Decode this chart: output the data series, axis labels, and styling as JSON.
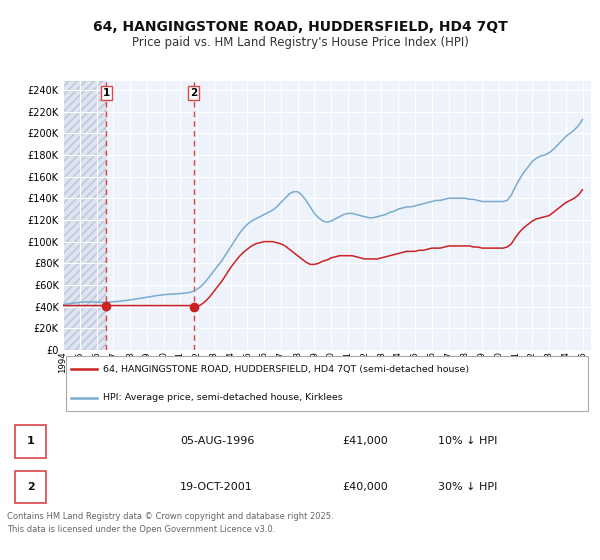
{
  "title": "64, HANGINGSTONE ROAD, HUDDERSFIELD, HD4 7QT",
  "subtitle": "Price paid vs. HM Land Registry's House Price Index (HPI)",
  "title_fontsize": 10,
  "subtitle_fontsize": 8.5,
  "background_color": "#ffffff",
  "plot_bg_color": "#eef2fb",
  "hatch_bg_color": "#dde4f0",
  "grid_color": "#ffffff",
  "ylabel_vals": [
    0,
    20000,
    40000,
    60000,
    80000,
    100000,
    120000,
    140000,
    160000,
    180000,
    200000,
    220000,
    240000
  ],
  "ylim": [
    0,
    248000
  ],
  "xlim_start": 1994.0,
  "xlim_end": 2025.5,
  "sale_dates": [
    1996.59,
    2001.8
  ],
  "sale_prices": [
    41000,
    40000
  ],
  "sale_labels": [
    "1",
    "2"
  ],
  "vline_color": "#dd4444",
  "sale_marker_color": "#cc2222",
  "red_line_color": "#cc2222",
  "blue_line_color": "#7aabcf",
  "legend_label_red": "64, HANGINGSTONE ROAD, HUDDERSFIELD, HD4 7QT (semi-detached house)",
  "legend_label_blue": "HPI: Average price, semi-detached house, Kirklees",
  "table_rows": [
    {
      "num": "1",
      "date": "05-AUG-1996",
      "price": "£41,000",
      "hpi": "10% ↓ HPI"
    },
    {
      "num": "2",
      "date": "19-OCT-2001",
      "price": "£40,000",
      "hpi": "30% ↓ HPI"
    }
  ],
  "footer": "Contains HM Land Registry data © Crown copyright and database right 2025.\nThis data is licensed under the Open Government Licence v3.0.",
  "hpi_x": [
    1994.0,
    1994.25,
    1994.5,
    1994.75,
    1995.0,
    1995.25,
    1995.5,
    1995.75,
    1996.0,
    1996.25,
    1996.5,
    1996.75,
    1997.0,
    1997.25,
    1997.5,
    1997.75,
    1998.0,
    1998.25,
    1998.5,
    1998.75,
    1999.0,
    1999.25,
    1999.5,
    1999.75,
    2000.0,
    2000.25,
    2000.5,
    2000.75,
    2001.0,
    2001.25,
    2001.5,
    2001.75,
    2002.0,
    2002.25,
    2002.5,
    2002.75,
    2003.0,
    2003.25,
    2003.5,
    2003.75,
    2004.0,
    2004.25,
    2004.5,
    2004.75,
    2005.0,
    2005.25,
    2005.5,
    2005.75,
    2006.0,
    2006.25,
    2006.5,
    2006.75,
    2007.0,
    2007.25,
    2007.5,
    2007.75,
    2008.0,
    2008.25,
    2008.5,
    2008.75,
    2009.0,
    2009.25,
    2009.5,
    2009.75,
    2010.0,
    2010.25,
    2010.5,
    2010.75,
    2011.0,
    2011.25,
    2011.5,
    2011.75,
    2012.0,
    2012.25,
    2012.5,
    2012.75,
    2013.0,
    2013.25,
    2013.5,
    2013.75,
    2014.0,
    2014.25,
    2014.5,
    2014.75,
    2015.0,
    2015.25,
    2015.5,
    2015.75,
    2016.0,
    2016.25,
    2016.5,
    2016.75,
    2017.0,
    2017.25,
    2017.5,
    2017.75,
    2018.0,
    2018.25,
    2018.5,
    2018.75,
    2019.0,
    2019.25,
    2019.5,
    2019.75,
    2020.0,
    2020.25,
    2020.5,
    2020.75,
    2021.0,
    2021.25,
    2021.5,
    2021.75,
    2022.0,
    2022.25,
    2022.5,
    2022.75,
    2023.0,
    2023.25,
    2023.5,
    2023.75,
    2024.0,
    2024.25,
    2024.5,
    2024.75,
    2025.0
  ],
  "hpi_y": [
    42000,
    42500,
    43000,
    43500,
    44000,
    44200,
    44500,
    44300,
    44200,
    44000,
    44000,
    44200,
    44500,
    44800,
    45200,
    45700,
    46200,
    46800,
    47400,
    48000,
    48700,
    49300,
    50000,
    50500,
    51000,
    51300,
    51600,
    51800,
    52000,
    52500,
    53000,
    54000,
    56000,
    59000,
    63000,
    68000,
    73000,
    78000,
    83000,
    89000,
    95000,
    101000,
    107000,
    112000,
    116000,
    119000,
    121000,
    123000,
    125000,
    127000,
    129000,
    132000,
    136000,
    140000,
    144000,
    146000,
    146000,
    143000,
    138000,
    132000,
    126000,
    122000,
    119000,
    118000,
    119000,
    121000,
    123000,
    125000,
    126000,
    126000,
    125000,
    124000,
    123000,
    122000,
    122000,
    123000,
    124000,
    125000,
    127000,
    128000,
    130000,
    131000,
    132000,
    132000,
    133000,
    134000,
    135000,
    136000,
    137000,
    138000,
    138000,
    139000,
    140000,
    140000,
    140000,
    140000,
    140000,
    139000,
    139000,
    138000,
    137000,
    137000,
    137000,
    137000,
    137000,
    137000,
    138000,
    143000,
    151000,
    158000,
    164000,
    169000,
    174000,
    177000,
    179000,
    180000,
    182000,
    185000,
    189000,
    193000,
    197000,
    200000,
    203000,
    207000,
    213000
  ],
  "price_x": [
    1994.0,
    1994.25,
    1994.5,
    1994.75,
    1995.0,
    1995.25,
    1995.5,
    1995.75,
    1996.0,
    1996.25,
    1996.5,
    1996.75,
    1997.0,
    1997.25,
    1997.5,
    1997.75,
    1998.0,
    1998.25,
    1998.5,
    1998.75,
    1999.0,
    1999.25,
    1999.5,
    1999.75,
    2000.0,
    2000.25,
    2000.5,
    2000.75,
    2001.0,
    2001.25,
    2001.5,
    2001.75,
    2002.0,
    2002.25,
    2002.5,
    2002.75,
    2003.0,
    2003.25,
    2003.5,
    2003.75,
    2004.0,
    2004.25,
    2004.5,
    2004.75,
    2005.0,
    2005.25,
    2005.5,
    2005.75,
    2006.0,
    2006.25,
    2006.5,
    2006.75,
    2007.0,
    2007.25,
    2007.5,
    2007.75,
    2008.0,
    2008.25,
    2008.5,
    2008.75,
    2009.0,
    2009.25,
    2009.5,
    2009.75,
    2010.0,
    2010.25,
    2010.5,
    2010.75,
    2011.0,
    2011.25,
    2011.5,
    2011.75,
    2012.0,
    2012.25,
    2012.5,
    2012.75,
    2013.0,
    2013.25,
    2013.5,
    2013.75,
    2014.0,
    2014.25,
    2014.5,
    2014.75,
    2015.0,
    2015.25,
    2015.5,
    2015.75,
    2016.0,
    2016.25,
    2016.5,
    2016.75,
    2017.0,
    2017.25,
    2017.5,
    2017.75,
    2018.0,
    2018.25,
    2018.5,
    2018.75,
    2019.0,
    2019.25,
    2019.5,
    2019.75,
    2020.0,
    2020.25,
    2020.5,
    2020.75,
    2021.0,
    2021.25,
    2021.5,
    2021.75,
    2022.0,
    2022.25,
    2022.5,
    2022.75,
    2023.0,
    2023.25,
    2023.5,
    2023.75,
    2024.0,
    2024.25,
    2024.5,
    2024.75,
    2025.0
  ],
  "price_y": [
    41000,
    41000,
    41000,
    41000,
    41000,
    41000,
    41000,
    41000,
    41000,
    41000,
    41000,
    41000,
    41000,
    41000,
    41000,
    41000,
    41000,
    41000,
    41000,
    41000,
    41000,
    41000,
    41000,
    41000,
    41000,
    41000,
    41000,
    41000,
    41000,
    41000,
    41000,
    41000,
    40000,
    42000,
    45000,
    49000,
    54000,
    59000,
    64000,
    70000,
    76000,
    81000,
    86000,
    90000,
    93000,
    96000,
    98000,
    99000,
    100000,
    100000,
    100000,
    99000,
    98000,
    96000,
    93000,
    90000,
    87000,
    84000,
    81000,
    79000,
    79000,
    80000,
    82000,
    83000,
    85000,
    86000,
    87000,
    87000,
    87000,
    87000,
    86000,
    85000,
    84000,
    84000,
    84000,
    84000,
    85000,
    86000,
    87000,
    88000,
    89000,
    90000,
    91000,
    91000,
    91000,
    92000,
    92000,
    93000,
    94000,
    94000,
    94000,
    95000,
    96000,
    96000,
    96000,
    96000,
    96000,
    96000,
    95000,
    95000,
    94000,
    94000,
    94000,
    94000,
    94000,
    94000,
    95000,
    98000,
    104000,
    109000,
    113000,
    116000,
    119000,
    121000,
    122000,
    123000,
    124000,
    127000,
    130000,
    133000,
    136000,
    138000,
    140000,
    143000,
    148000
  ]
}
